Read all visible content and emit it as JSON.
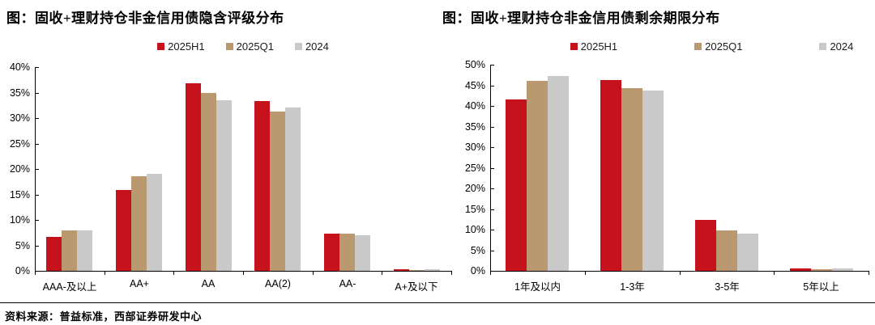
{
  "page": {
    "source_note": "资料来源：普益标准，西部证券研发中心"
  },
  "colors": {
    "series_2025H1": "#C5121D",
    "series_2025Q1": "#BA9870",
    "series_2024": "#C9C9C9",
    "axis": "#000000"
  },
  "legend": {
    "items": [
      "2025H1",
      "2025Q1",
      "2024"
    ]
  },
  "chart_data": [
    {
      "type": "bar",
      "title": "图：固收+理财持仓非金信用债隐含评级分布",
      "categories": [
        "AAA-及以上",
        "AA+",
        "AA",
        "AA(2)",
        "AA-",
        "A+及以下"
      ],
      "series": [
        {
          "name": "2025H1",
          "color": "#C5121D",
          "values": [
            6.7,
            15.8,
            36.9,
            33.3,
            7.3,
            0.3
          ]
        },
        {
          "name": "2025Q1",
          "color": "#BA9870",
          "values": [
            8.0,
            18.6,
            34.9,
            31.2,
            7.3,
            0.2
          ]
        },
        {
          "name": "2024",
          "color": "#C9C9C9",
          "values": [
            8.0,
            19.0,
            33.5,
            32.0,
            7.0,
            0.3
          ]
        }
      ],
      "xlabel": "",
      "ylabel": "",
      "ylim": [
        0,
        40
      ],
      "ytick_step": 5,
      "ytick_suffix": "%",
      "legend_position": "top",
      "grid": false
    },
    {
      "type": "bar",
      "title": "图：固收+理财持仓非金信用债剩余期限分布",
      "categories": [
        "1年及以内",
        "1-3年",
        "3-5年",
        "5年以上"
      ],
      "series": [
        {
          "name": "2025H1",
          "color": "#C5121D",
          "values": [
            41.5,
            46.2,
            12.4,
            0.5
          ]
        },
        {
          "name": "2025Q1",
          "color": "#BA9870",
          "values": [
            46.0,
            44.3,
            9.8,
            0.4
          ]
        },
        {
          "name": "2024",
          "color": "#C9C9C9",
          "values": [
            47.3,
            43.7,
            9.0,
            0.6
          ]
        }
      ],
      "xlabel": "",
      "ylabel": "",
      "ylim": [
        0,
        50
      ],
      "ytick_step": 5,
      "ytick_suffix": "%",
      "legend_position": "top",
      "grid": false
    }
  ]
}
